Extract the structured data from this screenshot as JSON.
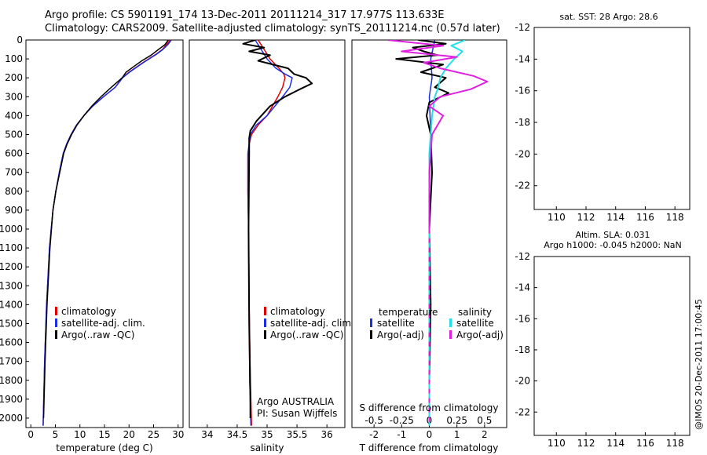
{
  "header": {
    "line1": "Argo profile: CS 5901191_174 13-Dec-2011 20111214_317 17.977S 113.633E",
    "line2": "Climatology: CARS2009. Satellite-adjusted climatology: synTS_20111214.nc (0.57d later)"
  },
  "credit": "@IMOS 20-Dec-2011 17:00:45",
  "colors": {
    "climatology": "#e00000",
    "satellite": "#1a2ee6",
    "argo": "#000000",
    "sal_satellite": "#22e0e8",
    "sal_argo": "#e020e0"
  },
  "chart_data": [
    {
      "type": "line",
      "panel": "temperature",
      "xlabel": "temperature (deg C)",
      "xlim": [
        -1,
        31
      ],
      "xticks": [
        0,
        5,
        10,
        15,
        20,
        25,
        30
      ],
      "xtick_labels": [
        "0",
        "5",
        "10",
        "15",
        "20",
        "25",
        "30"
      ],
      "ylim": [
        0,
        2050
      ],
      "yticks": [
        0,
        100,
        200,
        300,
        400,
        500,
        600,
        700,
        800,
        900,
        1000,
        1100,
        1200,
        1300,
        1400,
        1500,
        1600,
        1700,
        1800,
        1900,
        2000
      ],
      "ytick_labels": [
        "0",
        "100",
        "200",
        "300",
        "400",
        "500",
        "600",
        "700",
        "800",
        "900",
        "1000",
        "1100",
        "1200",
        "1300",
        "1400",
        "1500",
        "1600",
        "1700",
        "1800",
        "1900",
        "2000"
      ],
      "legend": [
        "climatology",
        "satellite-adj. clim.",
        "Argo(..raw -QC)"
      ],
      "series": [
        {
          "name": "climatology",
          "x": [
            28.4,
            27.6,
            26.8,
            25.5,
            22.8,
            20.0,
            18.6,
            17.2,
            14.8,
            12.6,
            10.8,
            9.3,
            8.2,
            7.3,
            6.6,
            5.8,
            5.1,
            4.5,
            3.8,
            3.2,
            2.8,
            2.5
          ],
          "y": [
            0,
            25,
            50,
            75,
            120,
            170,
            200,
            250,
            300,
            350,
            400,
            450,
            500,
            550,
            600,
            700,
            800,
            900,
            1100,
            1400,
            1700,
            2040
          ]
        },
        {
          "name": "satellite-adj. clim.",
          "x": [
            28.6,
            27.9,
            26.9,
            25.6,
            22.9,
            20.1,
            18.7,
            17.2,
            14.8,
            12.6,
            10.8,
            9.3,
            8.2,
            7.3,
            6.6,
            5.8,
            5.1,
            4.5,
            3.8,
            3.2,
            2.8,
            2.5
          ],
          "y": [
            0,
            25,
            50,
            75,
            120,
            170,
            200,
            250,
            300,
            350,
            400,
            450,
            500,
            550,
            600,
            700,
            800,
            900,
            1100,
            1400,
            1700,
            2040
          ]
        },
        {
          "name": "Argo(..raw -QC)",
          "x": [
            28.0,
            27.3,
            26.0,
            24.5,
            22.6,
            21.0,
            19.4,
            18.6,
            16.4,
            14.3,
            12.4,
            10.8,
            9.4,
            8.3,
            7.4,
            6.7,
            5.9,
            5.1,
            4.5,
            3.9,
            3.3,
            2.9,
            2.6
          ],
          "y": [
            0,
            25,
            50,
            80,
            110,
            140,
            170,
            200,
            250,
            300,
            350,
            400,
            450,
            500,
            550,
            600,
            700,
            800,
            900,
            1100,
            1400,
            1700,
            2000
          ]
        }
      ]
    },
    {
      "type": "line",
      "panel": "salinity",
      "xlabel": "salinity",
      "xlim": [
        33.7,
        36.3
      ],
      "xticks": [
        34,
        34.5,
        35,
        35.5,
        36
      ],
      "xtick_labels": [
        "34",
        "34.5",
        "35",
        "35.5",
        "36"
      ],
      "ylim": [
        0,
        2050
      ],
      "legend": [
        "climatology",
        "satellite-adj. clim.",
        "Argo(..raw -QC)"
      ],
      "annotations": [
        "Argo AUSTRALIA",
        "PI: Susan Wijffels"
      ],
      "series": [
        {
          "name": "climatology",
          "x": [
            34.85,
            34.95,
            35.05,
            35.2,
            35.28,
            35.3,
            35.26,
            35.18,
            35.0,
            34.85,
            34.74,
            34.7,
            34.68,
            34.68,
            34.69,
            34.7,
            34.72,
            34.74
          ],
          "y": [
            0,
            50,
            100,
            150,
            180,
            200,
            250,
            300,
            400,
            450,
            500,
            550,
            600,
            800,
            1000,
            1400,
            1800,
            2040
          ]
        },
        {
          "name": "satellite-adj. clim.",
          "x": [
            34.8,
            34.9,
            35.0,
            35.15,
            35.3,
            35.42,
            35.38,
            35.26,
            35.0,
            34.82,
            34.72,
            34.7,
            34.68,
            34.68,
            34.69,
            34.7,
            34.71,
            34.73
          ],
          "y": [
            0,
            50,
            100,
            150,
            180,
            200,
            250,
            300,
            400,
            450,
            500,
            550,
            600,
            800,
            1000,
            1400,
            1800,
            2040
          ]
        },
        {
          "name": "Argo(..raw -QC)",
          "x": [
            34.8,
            34.6,
            34.95,
            34.7,
            35.05,
            34.85,
            35.35,
            35.45,
            35.65,
            35.75,
            35.55,
            35.3,
            35.05,
            34.82,
            34.72,
            34.7,
            34.7,
            34.69,
            34.7,
            34.72,
            34.72
          ],
          "y": [
            0,
            20,
            40,
            60,
            80,
            110,
            150,
            180,
            200,
            230,
            260,
            300,
            350,
            430,
            480,
            520,
            600,
            1000,
            1500,
            1900,
            2000
          ]
        }
      ]
    },
    {
      "type": "line",
      "panel": "difference",
      "xlabel": "T difference from climatology",
      "xlabel2": "S difference from climatology",
      "xlim": [
        -2.8,
        2.8
      ],
      "xticks": [
        -2,
        -1,
        0,
        1,
        2
      ],
      "xtick_labels": [
        "-2",
        "-1",
        "0",
        "1",
        "2"
      ],
      "xticks2": [
        -2,
        -1,
        0,
        1,
        2
      ],
      "xtick_labels2": [
        "-0.5",
        "-0.25",
        "0",
        "0.25",
        "0.5"
      ],
      "ylim": [
        0,
        2050
      ],
      "legend_temperature": [
        "temperature",
        "satellite",
        "Argo(-adj)"
      ],
      "legend_salinity": [
        "salinity",
        "satellite",
        "Argo(-adj)"
      ],
      "series": [
        {
          "name": "temperature satellite",
          "x": [
            0.2,
            0.05,
            0.1,
            0.0,
            0.05,
            0.0,
            0.0,
            0.0,
            0.0
          ],
          "y": [
            0,
            100,
            200,
            300,
            500,
            800,
            1200,
            1600,
            2040
          ]
        },
        {
          "name": "temperature Argo(-adj)",
          "x": [
            -0.4,
            0.6,
            -0.6,
            -0.2,
            0.3,
            -1.2,
            0.5,
            -0.3,
            0.6,
            0.2,
            0.7,
            0.0,
            -0.1,
            0.05,
            0.1,
            0.0,
            0.05,
            0.0,
            0.0
          ],
          "y": [
            0,
            20,
            40,
            60,
            80,
            100,
            130,
            170,
            200,
            250,
            280,
            330,
            400,
            500,
            700,
            1000,
            1400,
            1800,
            2000
          ]
        },
        {
          "name": "salinity satellite",
          "x": [
            1.3,
            0.8,
            1.2,
            0.9,
            0.6,
            0.4,
            0.3,
            0.2,
            0.1,
            0.0,
            0.0,
            0.0
          ],
          "y": [
            0,
            30,
            60,
            100,
            150,
            200,
            260,
            300,
            400,
            600,
            1000,
            2040
          ]
        },
        {
          "name": "salinity Argo(-adj)",
          "x": [
            -1.5,
            0.5,
            -1.0,
            1.0,
            -0.2,
            0.4,
            1.6,
            2.1,
            1.5,
            0.4,
            0.0,
            0.5,
            0.1,
            0.0,
            0.0
          ],
          "y": [
            0,
            30,
            60,
            90,
            120,
            150,
            190,
            220,
            260,
            300,
            350,
            400,
            500,
            700,
            1000
          ]
        }
      ]
    },
    {
      "type": "heatmap",
      "panel": "sst-map",
      "title": "sat. SST: 28 Argo: 28.6",
      "xlim": [
        108.5,
        119
      ],
      "ylim": [
        -23.5,
        -12
      ],
      "xticks": [
        110,
        112,
        114,
        116,
        118
      ],
      "xtick_labels": [
        "110",
        "112",
        "114",
        "116",
        "118"
      ],
      "yticks": [
        -12,
        -14,
        -16,
        -18,
        -20,
        -22
      ],
      "ytick_labels": [
        "-12",
        "-14",
        "-16",
        "-18",
        "-20",
        "-22"
      ],
      "marker": [
        113.633,
        -17.977
      ]
    },
    {
      "type": "heatmap",
      "panel": "sla-map",
      "title": "Altim. SLA: 0.031",
      "subtitle": "Argo h1000: -0.045 h2000: NaN",
      "xlim": [
        108.5,
        119
      ],
      "ylim": [
        -23.5,
        -12
      ],
      "xticks": [
        110,
        112,
        114,
        116,
        118
      ],
      "xtick_labels": [
        "110",
        "112",
        "114",
        "116",
        "118"
      ],
      "yticks": [
        -12,
        -14,
        -16,
        -18,
        -20,
        -22
      ],
      "ytick_labels": [
        "-12",
        "-14",
        "-16",
        "-18",
        "-20",
        "-22"
      ],
      "marker": [
        113.633,
        -17.977
      ]
    }
  ]
}
